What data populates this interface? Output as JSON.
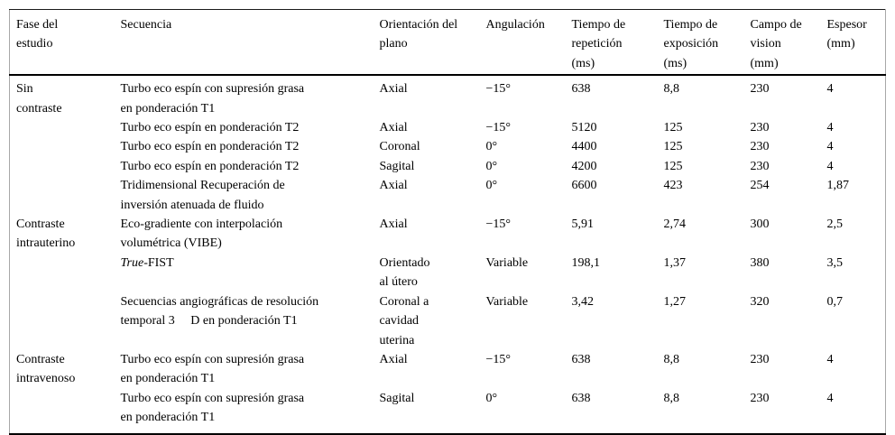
{
  "table": {
    "columns": [
      {
        "key": "fase",
        "lines": [
          "Fase del",
          "estudio"
        ]
      },
      {
        "key": "secuencia",
        "lines": [
          "Secuencia"
        ]
      },
      {
        "key": "orientacion",
        "lines": [
          "Orientación del",
          "plano"
        ]
      },
      {
        "key": "angulacion",
        "lines": [
          "Angulación"
        ]
      },
      {
        "key": "tiempo_repeticion",
        "lines": [
          "Tiempo de",
          "repetición",
          "(ms)"
        ]
      },
      {
        "key": "tiempo_exposicion",
        "lines": [
          "Tiempo de",
          "exposición",
          "(ms)"
        ]
      },
      {
        "key": "campo_vision",
        "lines": [
          "Campo de",
          "vision",
          "(mm)"
        ]
      },
      {
        "key": "espesor",
        "lines": [
          "Espesor",
          "(mm)"
        ]
      }
    ],
    "rows": [
      {
        "fase": [
          "Sin",
          "contraste"
        ],
        "secuencia": [
          "Turbo eco espín con supresión grasa",
          "en ponderación T1"
        ],
        "orientacion": [
          "Axial"
        ],
        "angulacion": [
          "−15°"
        ],
        "tiempo_repeticion": [
          "638"
        ],
        "tiempo_exposicion": [
          "8,8"
        ],
        "campo_vision": [
          "230"
        ],
        "espesor": [
          "4"
        ]
      },
      {
        "fase": [],
        "secuencia": [
          "Turbo eco espín en ponderación T2"
        ],
        "orientacion": [
          "Axial"
        ],
        "angulacion": [
          "−15°"
        ],
        "tiempo_repeticion": [
          "5120"
        ],
        "tiempo_exposicion": [
          "125"
        ],
        "campo_vision": [
          "230"
        ],
        "espesor": [
          "4"
        ]
      },
      {
        "fase": [],
        "secuencia": [
          "Turbo eco espín en ponderación T2"
        ],
        "orientacion": [
          "Coronal"
        ],
        "angulacion": [
          "0°"
        ],
        "tiempo_repeticion": [
          "4400"
        ],
        "tiempo_exposicion": [
          "125"
        ],
        "campo_vision": [
          "230"
        ],
        "espesor": [
          "4"
        ]
      },
      {
        "fase": [],
        "secuencia": [
          "Turbo eco espín en ponderación T2"
        ],
        "orientacion": [
          "Sagital"
        ],
        "angulacion": [
          "0°"
        ],
        "tiempo_repeticion": [
          "4200"
        ],
        "tiempo_exposicion": [
          "125"
        ],
        "campo_vision": [
          "230"
        ],
        "espesor": [
          "4"
        ]
      },
      {
        "fase": [],
        "secuencia": [
          "Tridimensional Recuperación de",
          "inversión atenuada de fluido"
        ],
        "orientacion": [
          "Axial"
        ],
        "angulacion": [
          "0°"
        ],
        "tiempo_repeticion": [
          "6600"
        ],
        "tiempo_exposicion": [
          "423"
        ],
        "campo_vision": [
          "254"
        ],
        "espesor": [
          "1,87"
        ]
      },
      {
        "fase": [
          "Contraste",
          "intrauterino"
        ],
        "secuencia": [
          "Eco-gradiente con interpolación",
          "volumétrica (VIBE)"
        ],
        "orientacion": [
          "Axial"
        ],
        "angulacion": [
          "−15°"
        ],
        "tiempo_repeticion": [
          "5,91"
        ],
        "tiempo_exposicion": [
          "2,74"
        ],
        "campo_vision": [
          "300"
        ],
        "espesor": [
          "2,5"
        ]
      },
      {
        "fase": [],
        "secuencia": [
          {
            "i": "True",
            "t": "-FIST"
          }
        ],
        "orientacion": [
          "Orientado",
          "al útero"
        ],
        "angulacion": [
          "Variable"
        ],
        "tiempo_repeticion": [
          "198,1"
        ],
        "tiempo_exposicion": [
          "1,37"
        ],
        "campo_vision": [
          "380"
        ],
        "espesor": [
          "3,5"
        ]
      },
      {
        "fase": [],
        "secuencia": [
          "Secuencias angiográficas de resolución",
          "temporal 3  D en ponderación T1"
        ],
        "orientacion": [
          "Coronal a",
          "cavidad",
          "uterina"
        ],
        "angulacion": [
          "Variable"
        ],
        "tiempo_repeticion": [
          "3,42"
        ],
        "tiempo_exposicion": [
          "1,27"
        ],
        "campo_vision": [
          "320"
        ],
        "espesor": [
          "0,7"
        ]
      },
      {
        "fase": [
          "Contraste",
          "intravenoso"
        ],
        "secuencia": [
          "Turbo eco espín con supresión grasa",
          "en ponderación T1"
        ],
        "orientacion": [
          "Axial"
        ],
        "angulacion": [
          "−15°"
        ],
        "tiempo_repeticion": [
          "638"
        ],
        "tiempo_exposicion": [
          "8,8"
        ],
        "campo_vision": [
          "230"
        ],
        "espesor": [
          "4"
        ]
      },
      {
        "fase": [],
        "secuencia": [
          "Turbo eco espín con supresión grasa",
          "en ponderación T1"
        ],
        "orientacion": [
          "Sagital"
        ],
        "angulacion": [
          "0°"
        ],
        "tiempo_repeticion": [
          "638"
        ],
        "tiempo_exposicion": [
          "8,8"
        ],
        "campo_vision": [
          "230"
        ],
        "espesor": [
          "4"
        ]
      }
    ]
  }
}
